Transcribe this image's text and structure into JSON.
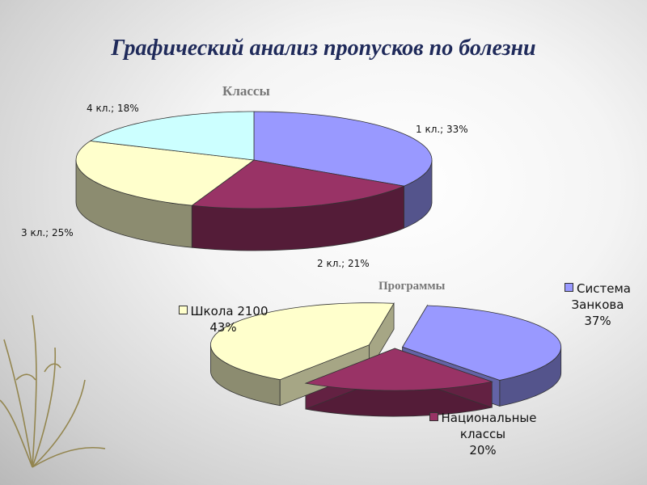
{
  "slide": {
    "title": "Графический анализ пропусков по болезни"
  },
  "chart_data": [
    {
      "type": "pie",
      "title": "Классы",
      "slices": [
        {
          "label": "1 кл.; 33%",
          "value": 33,
          "color": "#9999ff"
        },
        {
          "label": "2 кл.; 21%",
          "value": 21,
          "color": "#993366"
        },
        {
          "label": "3 кл.; 25%",
          "value": 25,
          "color": "#ffffcc"
        },
        {
          "label": "4 кл.; 18%",
          "value": 18,
          "color": "#ccffff"
        }
      ]
    },
    {
      "type": "pie",
      "title": "Программы",
      "slices": [
        {
          "name": "Система Занкова",
          "label_lines": [
            "Система",
            "Занкова",
            "37%"
          ],
          "value": 37,
          "color": "#9999ff"
        },
        {
          "name": "Национальные классы",
          "label_lines": [
            "Национальные",
            "классы",
            "20%"
          ],
          "value": 20,
          "color": "#993366"
        },
        {
          "name": "Школа 2100",
          "label_lines": [
            "Школа 2100",
            "43%"
          ],
          "value": 43,
          "color": "#ffffcc"
        }
      ]
    }
  ]
}
